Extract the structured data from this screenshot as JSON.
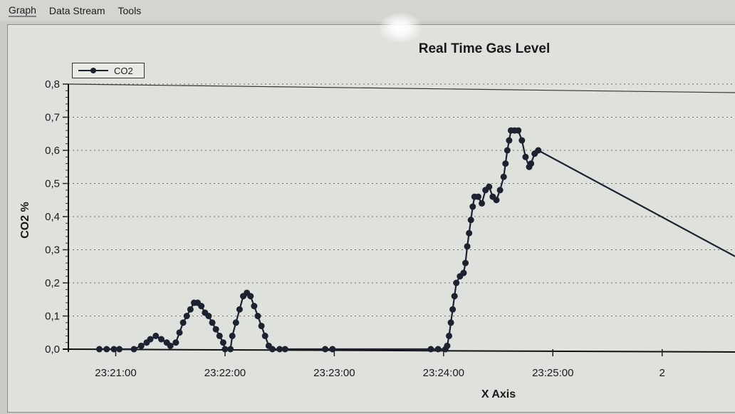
{
  "menu": {
    "items": [
      {
        "label": "Graph"
      },
      {
        "label": "Data Stream"
      },
      {
        "label": "Tools"
      }
    ]
  },
  "colors": {
    "series": "#1c2230",
    "grid": "#6e706c",
    "background": "#dfe1dd"
  },
  "chart_data": {
    "type": "line",
    "title": "Real Time Gas Level",
    "xlabel": "X Axis",
    "ylabel": "CO2 %",
    "legend": {
      "placement": "top-left",
      "entries": [
        "CO2"
      ]
    },
    "grid": "horizontal-dotted",
    "x_is_time": true,
    "xlim": [
      "23:20:34",
      "23:26:40"
    ],
    "ylim": [
      0,
      0.8
    ],
    "xticks": [
      "23:21:00",
      "23:22:00",
      "23:23:00",
      "23:24:00",
      "23:25:00",
      "2"
    ],
    "yticks": [
      "0,0",
      "0,1",
      "0,2",
      "0,3",
      "0,4",
      "0,5",
      "0,6",
      "0,7",
      "0,8"
    ],
    "series": [
      {
        "name": "CO2",
        "marker": "circle",
        "points": [
          [
            "23:20:51",
            0.0
          ],
          [
            "23:20:55",
            0.0
          ],
          [
            "23:20:59",
            0.0
          ],
          [
            "23:21:02",
            0.0
          ],
          [
            "23:21:10",
            0.0
          ],
          [
            "23:21:14",
            0.01
          ],
          [
            "23:21:17",
            0.02
          ],
          [
            "23:21:19",
            0.03
          ],
          [
            "23:21:22",
            0.04
          ],
          [
            "23:21:25",
            0.03
          ],
          [
            "23:21:28",
            0.02
          ],
          [
            "23:21:30",
            0.01
          ],
          [
            "23:21:33",
            0.02
          ],
          [
            "23:21:35",
            0.05
          ],
          [
            "23:21:37",
            0.08
          ],
          [
            "23:21:39",
            0.1
          ],
          [
            "23:21:41",
            0.12
          ],
          [
            "23:21:43",
            0.14
          ],
          [
            "23:21:45",
            0.14
          ],
          [
            "23:21:47",
            0.13
          ],
          [
            "23:21:49",
            0.11
          ],
          [
            "23:21:51",
            0.1
          ],
          [
            "23:21:53",
            0.08
          ],
          [
            "23:21:55",
            0.06
          ],
          [
            "23:21:57",
            0.04
          ],
          [
            "23:21:59",
            0.02
          ],
          [
            "23:22:00",
            0.0
          ],
          [
            "23:22:03",
            0.0
          ],
          [
            "23:22:04",
            0.04
          ],
          [
            "23:22:06",
            0.08
          ],
          [
            "23:22:08",
            0.12
          ],
          [
            "23:22:10",
            0.16
          ],
          [
            "23:22:12",
            0.17
          ],
          [
            "23:22:14",
            0.16
          ],
          [
            "23:22:16",
            0.13
          ],
          [
            "23:22:18",
            0.1
          ],
          [
            "23:22:20",
            0.07
          ],
          [
            "23:22:22",
            0.04
          ],
          [
            "23:22:24",
            0.01
          ],
          [
            "23:22:26",
            0.0
          ],
          [
            "23:22:30",
            0.0
          ],
          [
            "23:22:33",
            0.0
          ],
          [
            "23:22:55",
            0.0
          ],
          [
            "23:22:59",
            0.0
          ],
          [
            "23:23:53",
            0.0
          ],
          [
            "23:23:57",
            0.0
          ],
          [
            "23:24:01",
            0.0
          ],
          [
            "23:24:02",
            0.01
          ],
          [
            "23:24:03",
            0.04
          ],
          [
            "23:24:04",
            0.08
          ],
          [
            "23:24:05",
            0.12
          ],
          [
            "23:24:06",
            0.16
          ],
          [
            "23:24:07",
            0.2
          ],
          [
            "23:24:09",
            0.22
          ],
          [
            "23:24:11",
            0.23
          ],
          [
            "23:24:12",
            0.26
          ],
          [
            "23:24:13",
            0.31
          ],
          [
            "23:24:14",
            0.35
          ],
          [
            "23:24:15",
            0.39
          ],
          [
            "23:24:16",
            0.43
          ],
          [
            "23:24:17",
            0.46
          ],
          [
            "23:24:19",
            0.46
          ],
          [
            "23:24:21",
            0.44
          ],
          [
            "23:24:23",
            0.48
          ],
          [
            "23:24:25",
            0.49
          ],
          [
            "23:24:27",
            0.46
          ],
          [
            "23:24:29",
            0.45
          ],
          [
            "23:24:31",
            0.48
          ],
          [
            "23:24:33",
            0.52
          ],
          [
            "23:24:34",
            0.56
          ],
          [
            "23:24:35",
            0.6
          ],
          [
            "23:24:36",
            0.63
          ],
          [
            "23:24:37",
            0.66
          ],
          [
            "23:24:39",
            0.66
          ],
          [
            "23:24:41",
            0.66
          ],
          [
            "23:24:43",
            0.63
          ],
          [
            "23:24:45",
            0.58
          ],
          [
            "23:24:47",
            0.55
          ],
          [
            "23:24:48",
            0.56
          ],
          [
            "23:24:50",
            0.59
          ],
          [
            "23:24:52",
            0.6
          ],
          [
            "23:26:40",
            0.28
          ]
        ]
      }
    ]
  }
}
